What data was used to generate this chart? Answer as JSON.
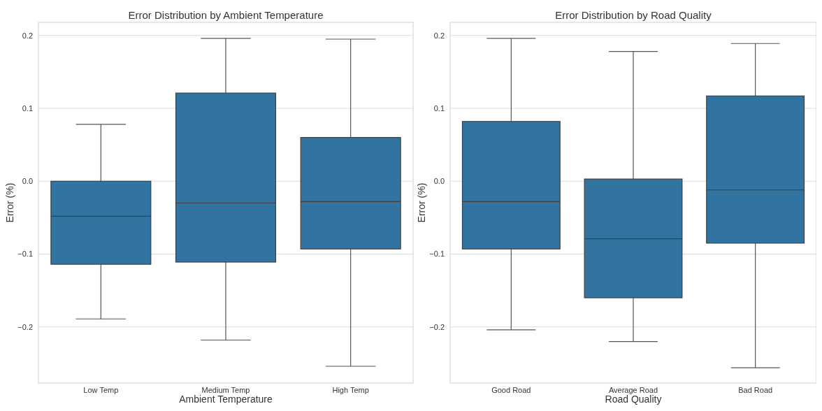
{
  "chart_data": [
    {
      "type": "box",
      "title": "Error Distribution by Ambient Temperature",
      "xlabel": "Ambient Temperature",
      "ylabel": "Error (%)",
      "categories": [
        "Low Temp",
        "Medium Temp",
        "High Temp"
      ],
      "series": [
        {
          "color": "#3274a1",
          "boxes": [
            {
              "low": -0.189,
              "q1": -0.114,
              "median": -0.048,
              "q3": 0.0,
              "high": 0.078
            },
            {
              "low": -0.218,
              "q1": -0.111,
              "median": -0.03,
              "q3": 0.121,
              "high": 0.196
            },
            {
              "low": -0.254,
              "q1": -0.093,
              "median": -0.028,
              "q3": 0.06,
              "high": 0.195
            }
          ]
        }
      ],
      "ylim": [
        -0.277,
        0.218
      ],
      "yticks": [
        {
          "value": -0.2,
          "label": "−0.2"
        },
        {
          "value": -0.1,
          "label": "−0.1"
        },
        {
          "value": 0,
          "label": "0.0"
        },
        {
          "value": 0.1,
          "label": "0.1"
        },
        {
          "value": 0.2,
          "label": "0.2"
        }
      ],
      "grid": "y"
    },
    {
      "type": "box",
      "title": "Error Distribution by Road Quality",
      "xlabel": "Road Quality",
      "ylabel": "Error (%)",
      "categories": [
        "Good Road",
        "Average Road",
        "Bad Road"
      ],
      "series": [
        {
          "color": "#3274a1",
          "boxes": [
            {
              "low": -0.204,
              "q1": -0.093,
              "median": -0.028,
              "q3": 0.082,
              "high": 0.196
            },
            {
              "low": -0.22,
              "q1": -0.16,
              "median": -0.079,
              "q3": 0.003,
              "high": 0.178
            },
            {
              "low": -0.256,
              "q1": -0.085,
              "median": -0.012,
              "q3": 0.117,
              "high": 0.189
            }
          ]
        }
      ],
      "ylim": [
        -0.277,
        0.218
      ],
      "yticks": [
        {
          "value": -0.2,
          "label": "−0.2"
        },
        {
          "value": -0.1,
          "label": "−0.1"
        },
        {
          "value": 0,
          "label": "0.0"
        },
        {
          "value": 0.1,
          "label": "0.1"
        },
        {
          "value": 0.2,
          "label": "0.2"
        }
      ],
      "grid": "y"
    }
  ]
}
